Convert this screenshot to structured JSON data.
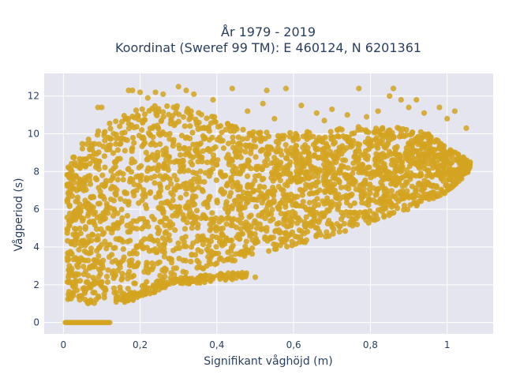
{
  "chart_data": {
    "type": "scatter",
    "title_lines": [
      "År 1979 - 2019",
      "Koordinat (Sweref 99 TM): E 460124, N 6201361"
    ],
    "xlabel": "Signifikant våghöjd (m)",
    "ylabel": "Vågperiod (s)",
    "xlim": [
      -0.05,
      1.12
    ],
    "ylim": [
      -0.6,
      13.2
    ],
    "x_ticks": [
      0,
      0.2,
      0.4,
      0.6,
      0.8,
      1
    ],
    "x_tick_labels": [
      "0",
      "0,2",
      "0,4",
      "0,6",
      "0,8",
      "1"
    ],
    "y_ticks": [
      0,
      2,
      4,
      6,
      8,
      10,
      12
    ],
    "y_tick_labels": [
      "0",
      "2",
      "4",
      "6",
      "8",
      "10",
      "12"
    ],
    "grid": true,
    "legend": "none",
    "marker_color": "#d4a421",
    "background_color": "#e5e5ef",
    "density": {
      "upper_envelope": [
        [
          0.01,
          8.4
        ],
        [
          0.05,
          9.5
        ],
        [
          0.1,
          10.3
        ],
        [
          0.15,
          11.0
        ],
        [
          0.2,
          11.4
        ],
        [
          0.25,
          11.5
        ],
        [
          0.3,
          11.5
        ],
        [
          0.35,
          11.4
        ],
        [
          0.4,
          10.9
        ],
        [
          0.45,
          10.4
        ],
        [
          0.5,
          10.2
        ],
        [
          0.55,
          10.0
        ],
        [
          0.6,
          10.1
        ],
        [
          0.7,
          10.3
        ],
        [
          0.8,
          10.4
        ],
        [
          0.9,
          10.3
        ],
        [
          0.95,
          10.0
        ],
        [
          1.0,
          9.3
        ],
        [
          1.04,
          8.8
        ],
        [
          1.06,
          8.5
        ]
      ],
      "lower_envelope": [
        [
          0.01,
          1.2
        ],
        [
          0.05,
          1.0
        ],
        [
          0.1,
          1.0
        ],
        [
          0.15,
          1.1
        ],
        [
          0.2,
          1.4
        ],
        [
          0.25,
          1.8
        ],
        [
          0.3,
          2.3
        ],
        [
          0.4,
          3.0
        ],
        [
          0.5,
          3.6
        ],
        [
          0.6,
          4.1
        ],
        [
          0.7,
          4.6
        ],
        [
          0.8,
          5.3
        ],
        [
          0.9,
          6.0
        ],
        [
          1.0,
          6.9
        ],
        [
          1.04,
          7.6
        ],
        [
          1.06,
          8.1
        ]
      ],
      "secondary_band": [
        [
          0.12,
          1.7
        ],
        [
          0.2,
          1.9
        ],
        [
          0.25,
          2.0
        ],
        [
          0.3,
          2.1
        ],
        [
          0.35,
          2.2
        ],
        [
          0.4,
          2.3
        ],
        [
          0.45,
          2.4
        ],
        [
          0.48,
          2.5
        ]
      ],
      "zero_period_range": [
        0.0,
        0.12
      ]
    },
    "outliers": [
      {
        "x": 0.17,
        "y": 12.3
      },
      {
        "x": 0.18,
        "y": 12.3
      },
      {
        "x": 0.2,
        "y": 12.2
      },
      {
        "x": 0.3,
        "y": 12.5
      },
      {
        "x": 0.32,
        "y": 12.3
      },
      {
        "x": 0.44,
        "y": 12.4
      },
      {
        "x": 0.53,
        "y": 12.3
      },
      {
        "x": 0.58,
        "y": 12.4
      },
      {
        "x": 0.77,
        "y": 12.4
      },
      {
        "x": 0.85,
        "y": 12.0
      },
      {
        "x": 0.86,
        "y": 12.4
      },
      {
        "x": 0.88,
        "y": 11.8
      },
      {
        "x": 0.9,
        "y": 11.4
      },
      {
        "x": 0.92,
        "y": 11.8
      },
      {
        "x": 0.98,
        "y": 11.4
      },
      {
        "x": 1.02,
        "y": 11.2
      },
      {
        "x": 1.05,
        "y": 10.3
      },
      {
        "x": 0.62,
        "y": 11.5
      },
      {
        "x": 0.7,
        "y": 11.3
      },
      {
        "x": 0.66,
        "y": 11.1
      },
      {
        "x": 0.52,
        "y": 11.6
      },
      {
        "x": 0.48,
        "y": 11.2
      },
      {
        "x": 0.74,
        "y": 11.0
      },
      {
        "x": 0.82,
        "y": 11.2
      },
      {
        "x": 0.94,
        "y": 11.1
      },
      {
        "x": 1.0,
        "y": 10.8
      },
      {
        "x": 0.39,
        "y": 11.8
      },
      {
        "x": 0.26,
        "y": 12.1
      },
      {
        "x": 0.09,
        "y": 11.4
      },
      {
        "x": 0.1,
        "y": 11.4
      },
      {
        "x": 0.55,
        "y": 10.8
      },
      {
        "x": 0.79,
        "y": 10.9
      },
      {
        "x": 0.68,
        "y": 10.7
      },
      {
        "x": 0.5,
        "y": 2.4
      },
      {
        "x": 0.46,
        "y": 2.5
      },
      {
        "x": 0.99,
        "y": 6.9
      },
      {
        "x": 1.01,
        "y": 7.2
      },
      {
        "x": 0.34,
        "y": 12.1
      },
      {
        "x": 0.24,
        "y": 12.2
      },
      {
        "x": 0.22,
        "y": 11.9
      }
    ]
  }
}
